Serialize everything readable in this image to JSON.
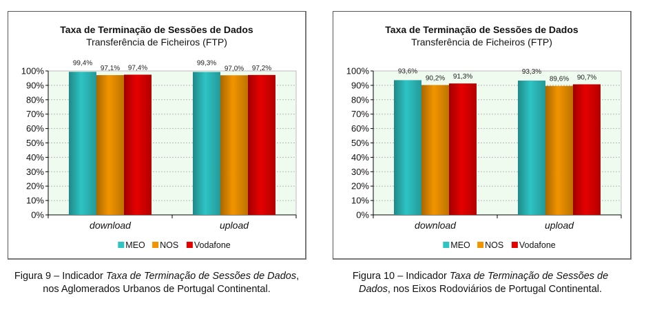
{
  "chart_data": [
    {
      "type": "bar",
      "title": "Taxa de Terminação de Sessões de Dados",
      "subtitle": "Transferência de Ficheiros (FTP)",
      "categories": [
        "download",
        "upload"
      ],
      "series": [
        {
          "name": "MEO",
          "values": [
            99.4,
            99.3
          ],
          "labels": [
            "99,4%",
            "99,3%"
          ],
          "color": "#2EC4C4"
        },
        {
          "name": "NOS",
          "values": [
            97.1,
            97.0
          ],
          "labels": [
            "97,1%",
            "97,0%"
          ],
          "color": "#F29400"
        },
        {
          "name": "Vodafone",
          "values": [
            97.4,
            97.2
          ],
          "labels": [
            "97,4%",
            "97,2%"
          ],
          "color": "#E60000"
        }
      ],
      "yticks": [
        "0%",
        "10%",
        "20%",
        "30%",
        "40%",
        "50%",
        "60%",
        "70%",
        "80%",
        "90%",
        "100%"
      ],
      "ylim": [
        0,
        100
      ],
      "grid": true,
      "legend": "bottom"
    },
    {
      "type": "bar",
      "title": "Taxa de Terminação de Sessões de Dados",
      "subtitle": "Transferência de Ficheiros (FTP)",
      "categories": [
        "download",
        "upload"
      ],
      "series": [
        {
          "name": "MEO",
          "values": [
            93.6,
            93.3
          ],
          "labels": [
            "93,6%",
            "93,3%"
          ],
          "color": "#2EC4C4"
        },
        {
          "name": "NOS",
          "values": [
            90.2,
            89.6
          ],
          "labels": [
            "90,2%",
            "89,6%"
          ],
          "color": "#F29400"
        },
        {
          "name": "Vodafone",
          "values": [
            91.3,
            90.7
          ],
          "labels": [
            "91,3%",
            "90,7%"
          ],
          "color": "#E60000"
        }
      ],
      "yticks": [
        "0%",
        "10%",
        "20%",
        "30%",
        "40%",
        "50%",
        "60%",
        "70%",
        "80%",
        "90%",
        "100%"
      ],
      "ylim": [
        0,
        100
      ],
      "grid": true,
      "legend": "bottom"
    }
  ],
  "captions": [
    {
      "prefix": "Figura 9 – Indicador ",
      "italic": "Taxa de Terminação de Sessões de Dados",
      "suffix": ",",
      "line2": "nos Aglomerados Urbanos de Portugal Continental."
    },
    {
      "prefix": "Figura 10 – Indicador ",
      "italic": "Taxa de Terminação de Sessões de",
      "line2_italic": "Dados",
      "line2": ", nos Eixos Rodoviários de Portugal Continental."
    }
  ]
}
